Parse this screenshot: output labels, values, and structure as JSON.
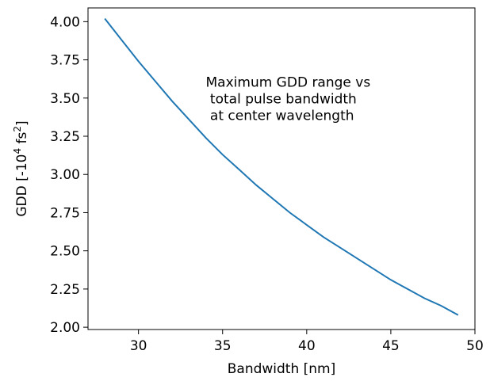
{
  "chart_data": {
    "type": "line",
    "xlabel": "Bandwidth [nm]",
    "ylabel": "GDD [-10",
    "ylabel_exp": "4",
    "ylabel_unit": " fs",
    "ylabel_unit_exp": "2",
    "ylabel_close": "]",
    "xlim": [
      27.0,
      50.0
    ],
    "ylim": [
      1.985,
      4.09
    ],
    "xticks": [
      30,
      35,
      40,
      45,
      50
    ],
    "xtick_labels": [
      "30",
      "35",
      "40",
      "45",
      "50"
    ],
    "yticks": [
      2.0,
      2.25,
      2.5,
      2.75,
      3.0,
      3.25,
      3.5,
      3.75,
      4.0
    ],
    "ytick_labels": [
      "2.00",
      "2.25",
      "2.50",
      "2.75",
      "3.00",
      "3.25",
      "3.50",
      "3.75",
      "4.00"
    ],
    "grid": false,
    "line_color": "#1f77b4",
    "series": [
      {
        "x": [
          28,
          29,
          30,
          31,
          32,
          33,
          34,
          35,
          36,
          37,
          38,
          39,
          40,
          41,
          42,
          43,
          44,
          45,
          46,
          47,
          48,
          49
        ],
        "values": [
          4.02,
          3.88,
          3.74,
          3.61,
          3.48,
          3.36,
          3.24,
          3.13,
          3.03,
          2.93,
          2.84,
          2.75,
          2.67,
          2.59,
          2.52,
          2.45,
          2.38,
          2.31,
          2.25,
          2.19,
          2.14,
          2.08
        ]
      }
    ],
    "annotation": {
      "lines": [
        "Maximum GDD range vs",
        " total pulse bandwidth",
        " at center wavelength"
      ],
      "x": 34.0,
      "y": 3.49
    }
  }
}
